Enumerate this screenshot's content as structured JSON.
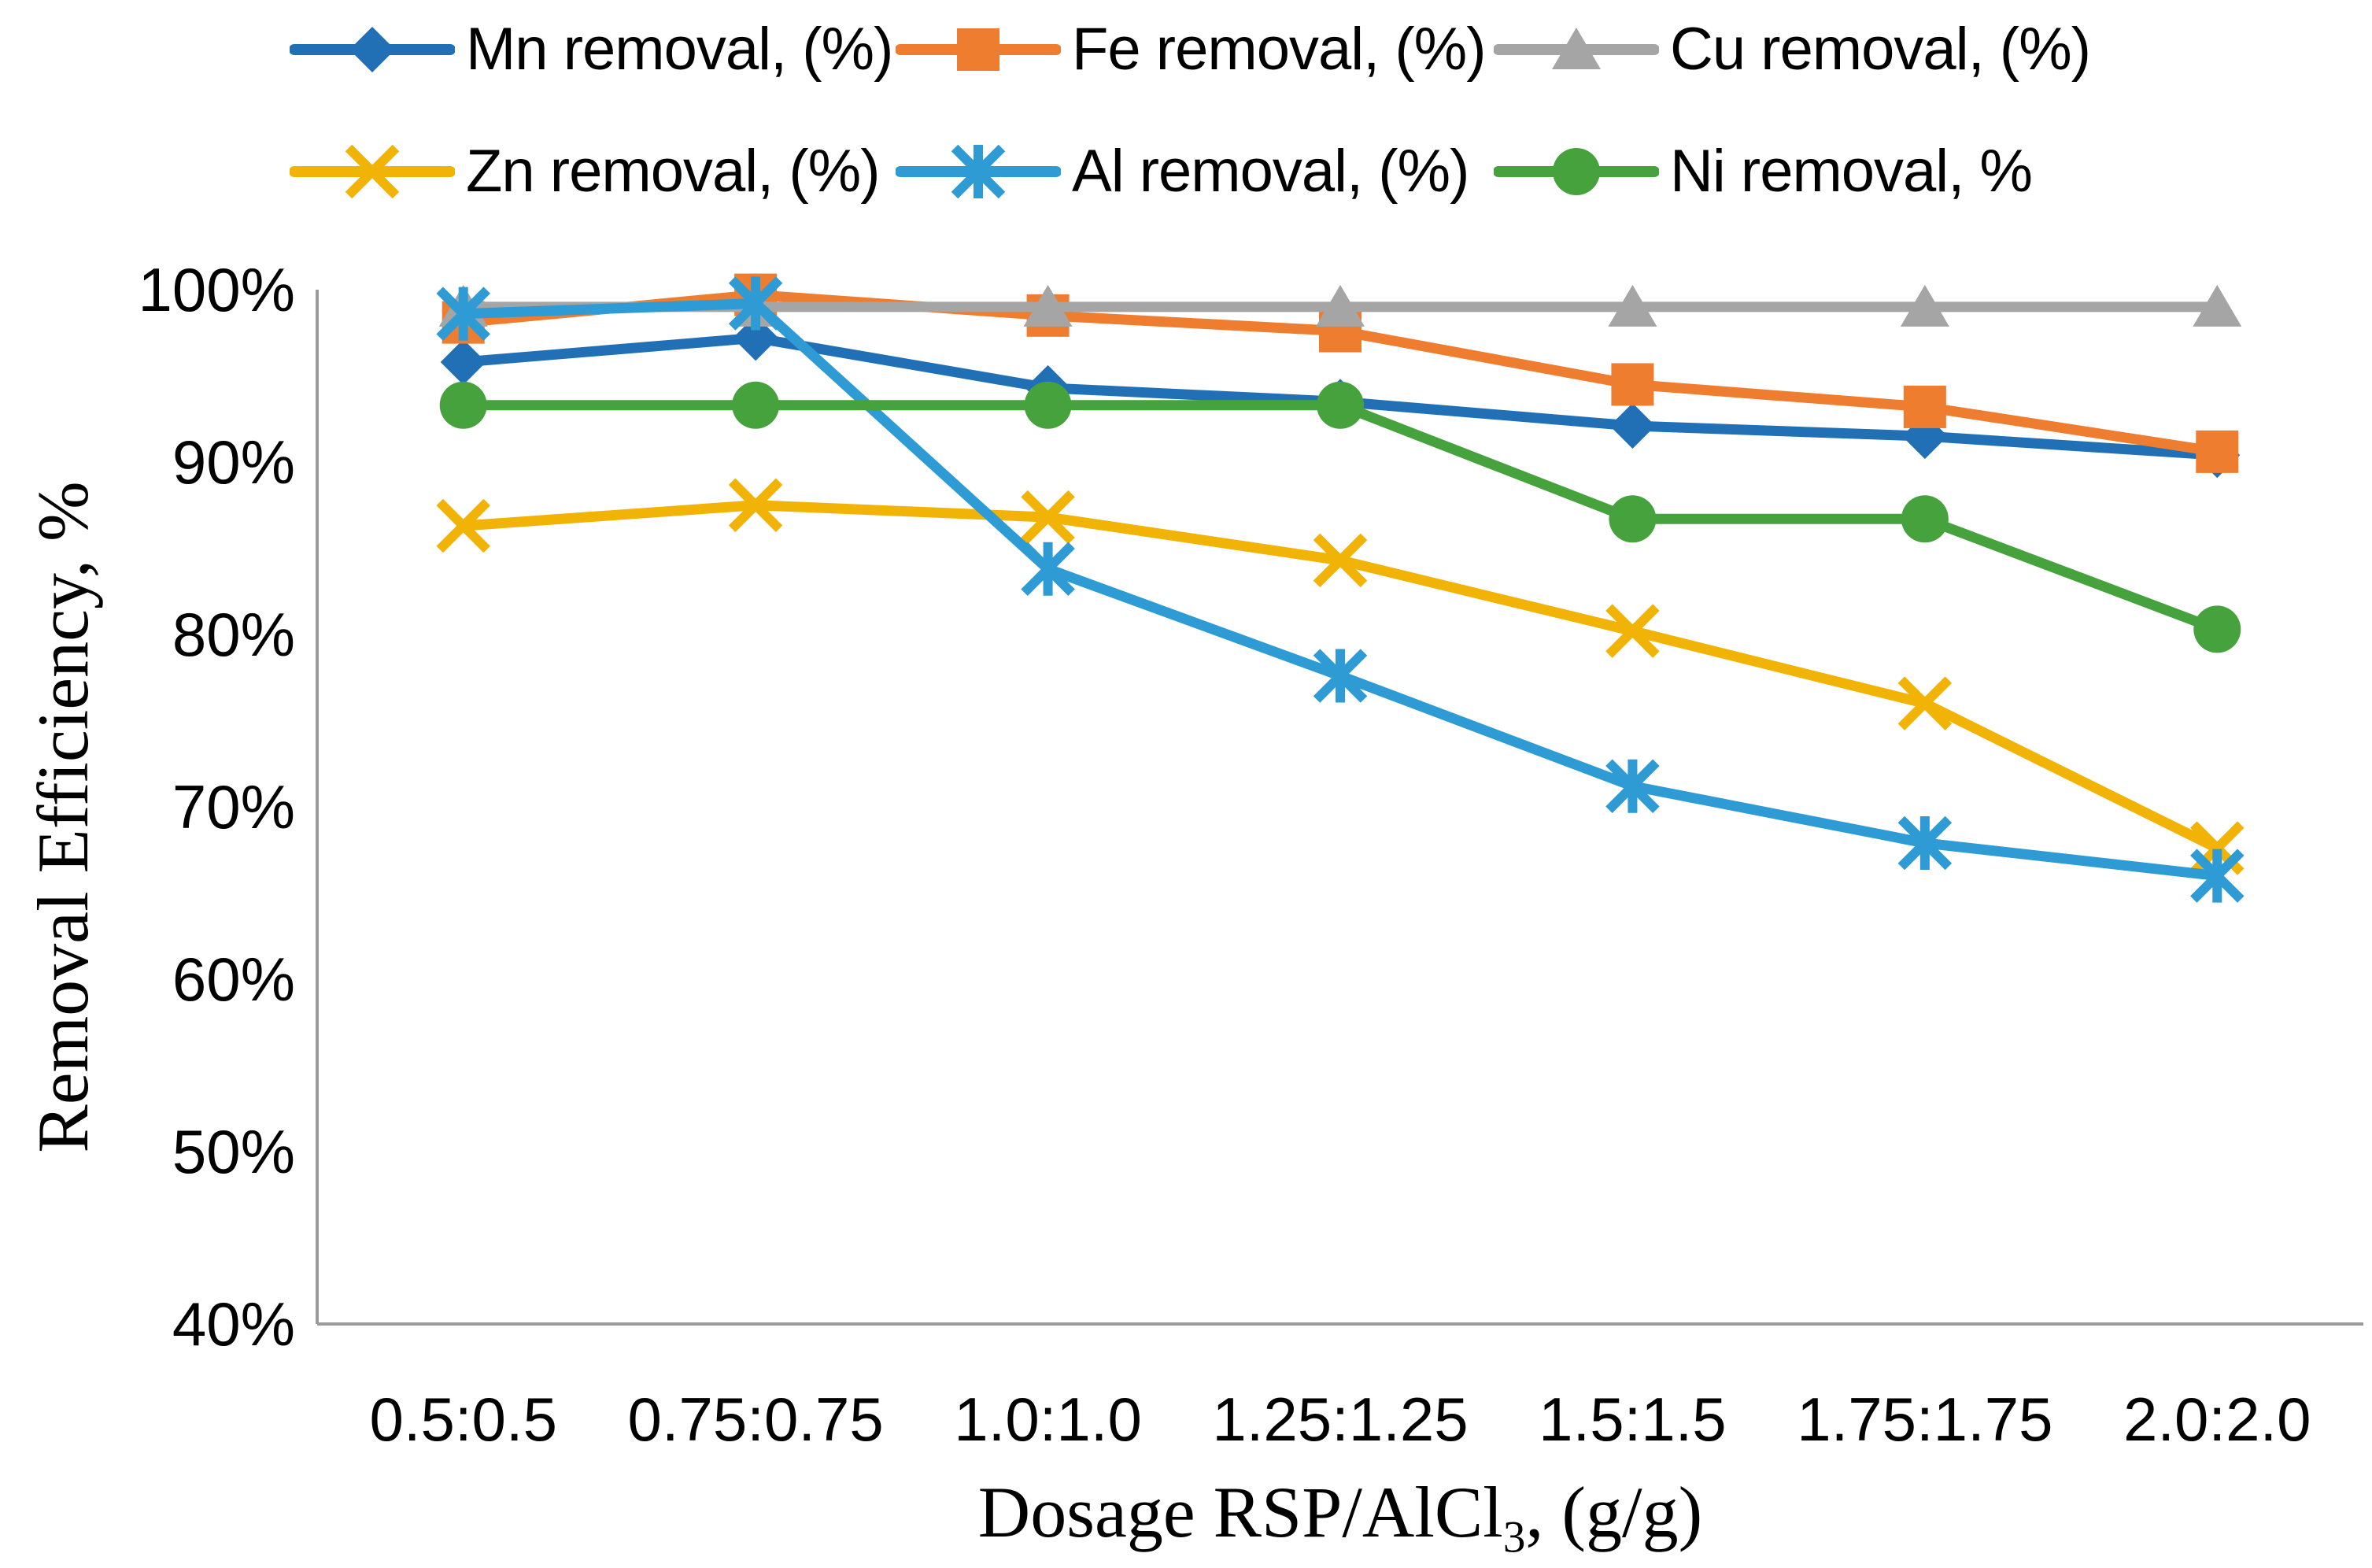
{
  "chart_data": {
    "type": "line",
    "categories": [
      "0.5:0.5",
      "0.75:0.75",
      "1.0:1.0",
      "1.25:1.25",
      "1.5:1.5",
      "1.75:1.75",
      "2.0:2.0"
    ],
    "series": [
      {
        "name": "Mn removal, (%)",
        "color": "#2170B6",
        "marker": "diamond",
        "values": [
          95.8,
          97.2,
          94.3,
          93.5,
          92.1,
          91.5,
          90.4
        ]
      },
      {
        "name": "Fe removal, (%)",
        "color": "#EE7D30",
        "marker": "square",
        "values": [
          98.1,
          99.7,
          98.5,
          97.6,
          94.5,
          93.2,
          90.6
        ]
      },
      {
        "name": "Cu removal, (%)",
        "color": "#A5A5A5",
        "marker": "triangle",
        "values": [
          99.0,
          99.0,
          99.0,
          99.0,
          99.0,
          99.0,
          99.0
        ]
      },
      {
        "name": "Zn removal, (%)",
        "color": "#F2B307",
        "marker": "x",
        "values": [
          86.3,
          87.5,
          86.8,
          84.3,
          80.2,
          76.0,
          67.6
        ]
      },
      {
        "name": "Al removal, (%)",
        "color": "#2E9BD5",
        "marker": "asterisk",
        "values": [
          98.6,
          99.2,
          83.8,
          77.6,
          71.2,
          67.9,
          66.0
        ]
      },
      {
        "name": "Ni removal, %",
        "color": "#46A23C",
        "marker": "circle",
        "values": [
          93.3,
          93.3,
          93.3,
          93.3,
          86.7,
          86.7,
          80.3
        ]
      }
    ],
    "title": "",
    "ylabel": "Removal Efficiency, %",
    "xlabel_main": "Dosage RSP/AlCl",
    "xlabel_sub": "3",
    "xlabel_tail": ", (g/g)",
    "ylim": [
      40,
      100
    ],
    "ytick_step": 10,
    "ytick_labels": [
      "40%",
      "50%",
      "60%",
      "70%",
      "80%",
      "90%",
      "100%"
    ],
    "grid": false,
    "legend_position": "top",
    "axis_color": "#9B9B9B"
  }
}
